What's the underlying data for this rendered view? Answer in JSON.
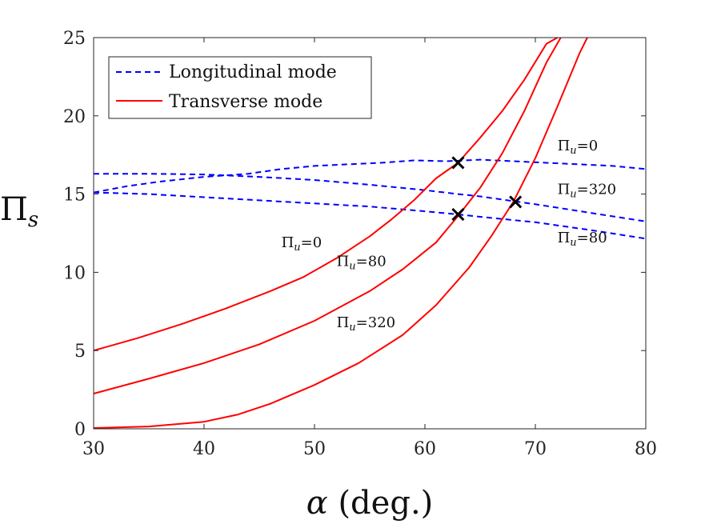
{
  "chart_data": {
    "type": "line",
    "xlabel": "α (deg.)",
    "ylabel": "Πs",
    "xlim": [
      30,
      80
    ],
    "ylim": [
      0,
      25
    ],
    "xticks": [
      30,
      40,
      50,
      60,
      70,
      80
    ],
    "yticks": [
      0,
      5,
      10,
      15,
      20,
      25
    ],
    "legend": {
      "placement": "top-left",
      "entries": [
        {
          "label": "Longitudinal mode",
          "style": "dashed",
          "color": "#0000ff"
        },
        {
          "label": "Transverse mode",
          "style": "solid",
          "color": "#ff0000"
        }
      ]
    },
    "series": [
      {
        "name": "Longitudinal Πu=0",
        "kind": "longitudinal",
        "color": "#0000ff",
        "dash": "dashed",
        "points": [
          [
            30,
            15.1
          ],
          [
            33,
            15.5
          ],
          [
            36,
            15.8
          ],
          [
            40,
            16.1
          ],
          [
            44,
            16.3
          ],
          [
            47,
            16.6
          ],
          [
            50,
            16.8
          ],
          [
            53,
            16.9
          ],
          [
            56,
            17.0
          ],
          [
            59,
            17.15
          ],
          [
            62,
            17.1
          ],
          [
            65,
            17.2
          ],
          [
            68,
            17.1
          ],
          [
            71,
            17.0
          ],
          [
            74,
            16.9
          ],
          [
            77,
            16.8
          ],
          [
            80,
            16.6
          ]
        ]
      },
      {
        "name": "Longitudinal Πu=320",
        "kind": "longitudinal",
        "color": "#0000ff",
        "dash": "dashed",
        "points": [
          [
            30,
            16.3
          ],
          [
            35,
            16.3
          ],
          [
            40,
            16.25
          ],
          [
            45,
            16.1
          ],
          [
            50,
            15.9
          ],
          [
            55,
            15.6
          ],
          [
            60,
            15.25
          ],
          [
            63,
            15.0
          ],
          [
            65,
            14.85
          ],
          [
            70,
            14.35
          ],
          [
            75,
            13.8
          ],
          [
            80,
            13.25
          ]
        ]
      },
      {
        "name": "Longitudinal Πu=80",
        "kind": "longitudinal",
        "color": "#0000ff",
        "dash": "dashed",
        "points": [
          [
            30,
            15.1
          ],
          [
            35,
            15.0
          ],
          [
            40,
            14.8
          ],
          [
            45,
            14.6
          ],
          [
            50,
            14.4
          ],
          [
            55,
            14.2
          ],
          [
            60,
            13.9
          ],
          [
            63,
            13.7
          ],
          [
            65,
            13.55
          ],
          [
            70,
            13.2
          ],
          [
            75,
            12.7
          ],
          [
            80,
            12.15
          ]
        ]
      },
      {
        "name": "Transverse Πu=0",
        "kind": "transverse",
        "color": "#ff0000",
        "dash": "solid",
        "points": [
          [
            30,
            5.0
          ],
          [
            34,
            5.8
          ],
          [
            38,
            6.7
          ],
          [
            42,
            7.7
          ],
          [
            46,
            8.8
          ],
          [
            49,
            9.7
          ],
          [
            52,
            10.9
          ],
          [
            55,
            12.3
          ],
          [
            57,
            13.4
          ],
          [
            59,
            14.6
          ],
          [
            61,
            16.0
          ],
          [
            63,
            17.0
          ],
          [
            65,
            18.6
          ],
          [
            67,
            20.3
          ],
          [
            69,
            22.3
          ],
          [
            71,
            24.6
          ],
          [
            72,
            25.0
          ]
        ]
      },
      {
        "name": "Transverse Πu=80",
        "kind": "transverse",
        "color": "#ff0000",
        "dash": "solid",
        "points": [
          [
            30,
            2.25
          ],
          [
            35,
            3.2
          ],
          [
            40,
            4.2
          ],
          [
            45,
            5.4
          ],
          [
            50,
            6.9
          ],
          [
            55,
            8.8
          ],
          [
            58,
            10.2
          ],
          [
            61,
            11.9
          ],
          [
            63,
            13.6
          ],
          [
            65,
            15.4
          ],
          [
            67,
            17.6
          ],
          [
            69,
            20.3
          ],
          [
            71,
            23.4
          ],
          [
            72.3,
            25.0
          ]
        ]
      },
      {
        "name": "Transverse Πu=320",
        "kind": "transverse",
        "color": "#ff0000",
        "dash": "solid",
        "points": [
          [
            30,
            0.05
          ],
          [
            35,
            0.15
          ],
          [
            40,
            0.45
          ],
          [
            43,
            0.9
          ],
          [
            46,
            1.6
          ],
          [
            50,
            2.8
          ],
          [
            54,
            4.2
          ],
          [
            58,
            6.0
          ],
          [
            61,
            7.9
          ],
          [
            64,
            10.3
          ],
          [
            66,
            12.3
          ],
          [
            68,
            14.5
          ],
          [
            70,
            17.3
          ],
          [
            72,
            20.6
          ],
          [
            74,
            24.0
          ],
          [
            74.7,
            25.0
          ]
        ]
      }
    ],
    "markers": [
      {
        "x": 63,
        "y": 17.0
      },
      {
        "x": 63,
        "y": 13.7
      },
      {
        "x": 68.2,
        "y": 14.5
      }
    ],
    "annotations": [
      {
        "id": "right-0",
        "sym": "Π",
        "sub": "u",
        "rest": "=0",
        "x": 72,
        "y": 17.8
      },
      {
        "id": "right-320",
        "sym": "Π",
        "sub": "u",
        "rest": "=320",
        "x": 72,
        "y": 15.0
      },
      {
        "id": "right-80",
        "sym": "Π",
        "sub": "u",
        "rest": "=80",
        "x": 72,
        "y": 11.9
      },
      {
        "id": "left-0",
        "sym": "Π",
        "sub": "u",
        "rest": "=0",
        "x": 47,
        "y": 11.6
      },
      {
        "id": "left-80",
        "sym": "Π",
        "sub": "u",
        "rest": "=80",
        "x": 52,
        "y": 10.4
      },
      {
        "id": "left-320",
        "sym": "Π",
        "sub": "u",
        "rest": "=320",
        "x": 52,
        "y": 6.5
      }
    ]
  }
}
